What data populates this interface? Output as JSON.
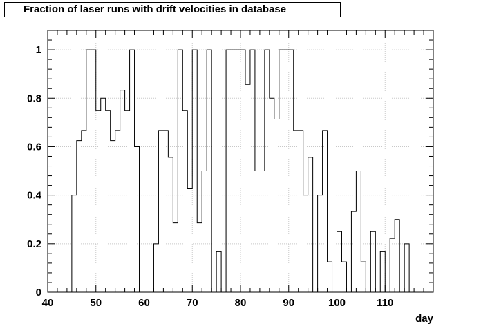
{
  "chart_data": {
    "type": "histogram-step",
    "title": "Fraction of laser runs with drift velocities in database",
    "xlabel": "day",
    "ylabel": "",
    "xlim": [
      40,
      120
    ],
    "ylim": [
      0,
      1.08
    ],
    "grid": true,
    "legend": "none",
    "x_ticks": [
      40,
      50,
      60,
      70,
      80,
      90,
      100,
      110
    ],
    "y_ticks": [
      0,
      0.2,
      0.4,
      0.6,
      0.8,
      1
    ],
    "y_tick_labels": [
      "0",
      "0.2",
      "0.4",
      "0.6",
      "0.8",
      "1"
    ],
    "bin_width": 1,
    "bins": [
      {
        "x": 40,
        "y": 0
      },
      {
        "x": 41,
        "y": 0
      },
      {
        "x": 42,
        "y": 0
      },
      {
        "x": 43,
        "y": 0
      },
      {
        "x": 44,
        "y": 0
      },
      {
        "x": 45,
        "y": 0.4
      },
      {
        "x": 46,
        "y": 0.625
      },
      {
        "x": 47,
        "y": 0.667
      },
      {
        "x": 48,
        "y": 1
      },
      {
        "x": 49,
        "y": 1
      },
      {
        "x": 50,
        "y": 0.75
      },
      {
        "x": 51,
        "y": 0.8
      },
      {
        "x": 52,
        "y": 0.75
      },
      {
        "x": 53,
        "y": 0.625
      },
      {
        "x": 54,
        "y": 0.667
      },
      {
        "x": 55,
        "y": 0.833
      },
      {
        "x": 56,
        "y": 0.75
      },
      {
        "x": 57,
        "y": 1
      },
      {
        "x": 58,
        "y": 0.6
      },
      {
        "x": 59,
        "y": 0
      },
      {
        "x": 60,
        "y": 0
      },
      {
        "x": 61,
        "y": 0
      },
      {
        "x": 62,
        "y": 0.2
      },
      {
        "x": 63,
        "y": 0.667
      },
      {
        "x": 64,
        "y": 0.667
      },
      {
        "x": 65,
        "y": 0.556
      },
      {
        "x": 66,
        "y": 0.286
      },
      {
        "x": 67,
        "y": 1
      },
      {
        "x": 68,
        "y": 0.75
      },
      {
        "x": 69,
        "y": 0.429
      },
      {
        "x": 70,
        "y": 1
      },
      {
        "x": 71,
        "y": 0.286
      },
      {
        "x": 72,
        "y": 0.5
      },
      {
        "x": 73,
        "y": 1
      },
      {
        "x": 74,
        "y": 0
      },
      {
        "x": 75,
        "y": 0.167
      },
      {
        "x": 76,
        "y": 0
      },
      {
        "x": 77,
        "y": 1
      },
      {
        "x": 78,
        "y": 1
      },
      {
        "x": 79,
        "y": 1
      },
      {
        "x": 80,
        "y": 1
      },
      {
        "x": 81,
        "y": 0.857
      },
      {
        "x": 82,
        "y": 1
      },
      {
        "x": 83,
        "y": 0.5
      },
      {
        "x": 84,
        "y": 0.5
      },
      {
        "x": 85,
        "y": 1
      },
      {
        "x": 86,
        "y": 0.8
      },
      {
        "x": 87,
        "y": 0.714
      },
      {
        "x": 88,
        "y": 1
      },
      {
        "x": 89,
        "y": 1
      },
      {
        "x": 90,
        "y": 1
      },
      {
        "x": 91,
        "y": 0.667
      },
      {
        "x": 92,
        "y": 0.667
      },
      {
        "x": 93,
        "y": 0.4
      },
      {
        "x": 94,
        "y": 0.556
      },
      {
        "x": 95,
        "y": 0
      },
      {
        "x": 96,
        "y": 0.4
      },
      {
        "x": 97,
        "y": 0.667
      },
      {
        "x": 98,
        "y": 0.125
      },
      {
        "x": 99,
        "y": 0
      },
      {
        "x": 100,
        "y": 0.25
      },
      {
        "x": 101,
        "y": 0.125
      },
      {
        "x": 102,
        "y": 0
      },
      {
        "x": 103,
        "y": 0.333
      },
      {
        "x": 104,
        "y": 0.5
      },
      {
        "x": 105,
        "y": 0.125
      },
      {
        "x": 106,
        "y": 0
      },
      {
        "x": 107,
        "y": 0.25
      },
      {
        "x": 108,
        "y": 0
      },
      {
        "x": 109,
        "y": 0.167
      },
      {
        "x": 110,
        "y": 0
      },
      {
        "x": 111,
        "y": 0.222
      },
      {
        "x": 112,
        "y": 0.3
      },
      {
        "x": 113,
        "y": 0
      },
      {
        "x": 114,
        "y": 0.2
      },
      {
        "x": 115,
        "y": 0
      }
    ],
    "line_color": "#000000",
    "grid_color": "#c8c8c8"
  }
}
